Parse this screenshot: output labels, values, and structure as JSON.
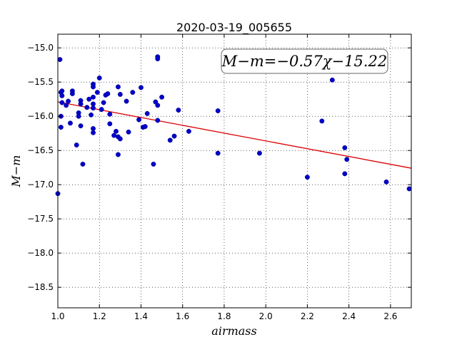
{
  "chart_data": {
    "type": "scatter",
    "title": "2020-03-19_005655",
    "xlabel": "airmass",
    "ylabel": "M−m",
    "annotation": "M−m=−0.57χ−15.22",
    "xlim": [
      1.0,
      2.7
    ],
    "ylim": [
      -18.8,
      -14.8
    ],
    "y_inverted": true,
    "grid": true,
    "xticks": [
      1.0,
      1.2,
      1.4,
      1.6,
      1.8,
      2.0,
      2.2,
      2.4,
      2.6
    ],
    "xtick_labels": [
      "1.0",
      "1.2",
      "1.4",
      "1.6",
      "1.8",
      "2.0",
      "2.2",
      "2.4",
      "2.6"
    ],
    "yticks": [
      -15.0,
      -15.5,
      -16.0,
      -16.5,
      -17.0,
      -17.5,
      -18.0,
      -18.5
    ],
    "ytick_labels": [
      "−15.0",
      "−15.5",
      "−16.0",
      "−16.5",
      "−17.0",
      "−17.5",
      "−18.0",
      "−18.5"
    ],
    "colors": {
      "points": "#0000cc",
      "points_edge": "#000080",
      "fit_line": "#dd0000"
    },
    "fit": {
      "slope": -0.57,
      "intercept": -15.22,
      "x_range": [
        1.0,
        2.7
      ]
    },
    "points": [
      [
        1.0,
        -17.13
      ],
      [
        1.01,
        -15.17
      ],
      [
        1.015,
        -15.65
      ],
      [
        1.02,
        -15.63
      ],
      [
        1.02,
        -15.7
      ],
      [
        1.015,
        -16.0
      ],
      [
        1.02,
        -15.8
      ],
      [
        1.015,
        -16.16
      ],
      [
        1.04,
        -15.84
      ],
      [
        1.05,
        -15.78
      ],
      [
        1.06,
        -16.1
      ],
      [
        1.07,
        -15.63
      ],
      [
        1.07,
        -15.67
      ],
      [
        1.09,
        -16.42
      ],
      [
        1.1,
        -15.95
      ],
      [
        1.1,
        -16.0
      ],
      [
        1.11,
        -15.77
      ],
      [
        1.11,
        -15.82
      ],
      [
        1.11,
        -16.14
      ],
      [
        1.12,
        -16.7
      ],
      [
        1.14,
        -15.87
      ],
      [
        1.15,
        -15.75
      ],
      [
        1.16,
        -15.98
      ],
      [
        1.17,
        -15.53
      ],
      [
        1.17,
        -15.57
      ],
      [
        1.17,
        -15.72
      ],
      [
        1.17,
        -15.82
      ],
      [
        1.17,
        -15.88
      ],
      [
        1.17,
        -16.18
      ],
      [
        1.17,
        -16.24
      ],
      [
        1.19,
        -15.65
      ],
      [
        1.2,
        -15.44
      ],
      [
        1.21,
        -15.9
      ],
      [
        1.22,
        -15.8
      ],
      [
        1.23,
        -15.69
      ],
      [
        1.24,
        -15.67
      ],
      [
        1.25,
        -15.97
      ],
      [
        1.25,
        -16.11
      ],
      [
        1.27,
        -16.28
      ],
      [
        1.28,
        -16.22
      ],
      [
        1.29,
        -15.57
      ],
      [
        1.29,
        -16.3
      ],
      [
        1.29,
        -16.56
      ],
      [
        1.3,
        -15.68
      ],
      [
        1.3,
        -16.33
      ],
      [
        1.33,
        -15.78
      ],
      [
        1.34,
        -16.23
      ],
      [
        1.36,
        -15.65
      ],
      [
        1.39,
        -16.05
      ],
      [
        1.4,
        -15.58
      ],
      [
        1.41,
        -16.16
      ],
      [
        1.42,
        -16.15
      ],
      [
        1.43,
        -15.96
      ],
      [
        1.46,
        -16.7
      ],
      [
        1.47,
        -15.79
      ],
      [
        1.48,
        -15.13
      ],
      [
        1.48,
        -15.16
      ],
      [
        1.48,
        -15.84
      ],
      [
        1.48,
        -16.06
      ],
      [
        1.5,
        -15.72
      ],
      [
        1.54,
        -16.35
      ],
      [
        1.56,
        -16.29
      ],
      [
        1.58,
        -15.91
      ],
      [
        1.63,
        -16.22
      ],
      [
        1.77,
        -15.92
      ],
      [
        1.77,
        -16.54
      ],
      [
        1.97,
        -16.54
      ],
      [
        2.2,
        -16.89
      ],
      [
        2.27,
        -16.07
      ],
      [
        2.32,
        -15.47
      ],
      [
        2.38,
        -16.46
      ],
      [
        2.38,
        -16.84
      ],
      [
        2.39,
        -16.63
      ],
      [
        2.58,
        -16.96
      ],
      [
        2.69,
        -17.06
      ]
    ]
  }
}
